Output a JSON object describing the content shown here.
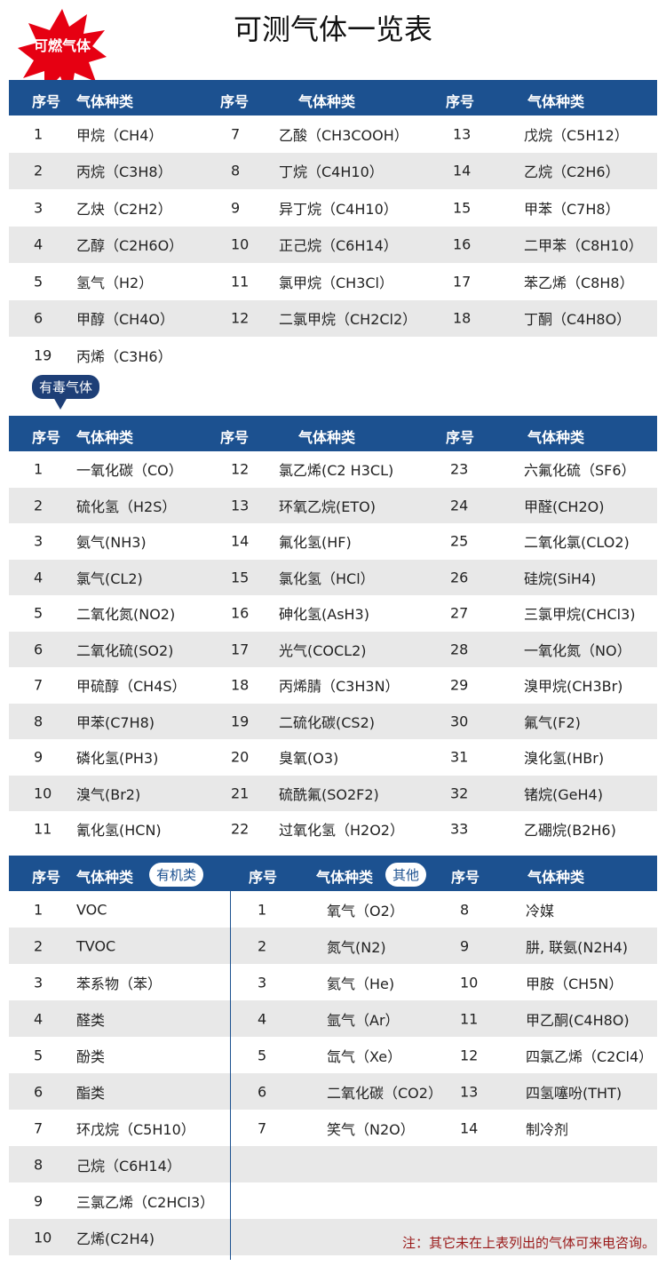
{
  "title": "可测气体一览表",
  "colors": {
    "header": "#1c5190",
    "alt_row": "#e8e8e8",
    "badge_red": "#e60012",
    "note": "#9a1a1a"
  },
  "flammable": {
    "badge": "可燃气体",
    "headers": [
      "序号",
      "气体种类",
      "序号",
      "气体种类",
      "序号",
      "气体种类"
    ],
    "rows": [
      [
        "1",
        "甲烷（CH4）",
        "7",
        "乙酸（CH3COOH）",
        "13",
        "戊烷（C5H12）"
      ],
      [
        "2",
        "丙烷（C3H8）",
        "8",
        "丁烷（C4H10）",
        "14",
        "乙烷（C2H6）"
      ],
      [
        "3",
        "乙炔（C2H2）",
        "9",
        "异丁烷（C4H10）",
        "15",
        "甲苯（C7H8）"
      ],
      [
        "4",
        "乙醇（C2H6O）",
        "10",
        "正己烷（C6H14）",
        "16",
        "二甲苯（C8H10）"
      ],
      [
        "5",
        "氢气（H2）",
        "11",
        "氯甲烷（CH3Cl）",
        "17",
        "苯乙烯（C8H8）"
      ],
      [
        "6",
        "甲醇（CH4O）",
        "12",
        "二氯甲烷（CH2Cl2）",
        "18",
        "丁酮（C4H8O）"
      ],
      [
        "19",
        "丙烯（C3H6）",
        "",
        "",
        "",
        ""
      ]
    ]
  },
  "toxic": {
    "badge": "有毒气体",
    "headers": [
      "序号",
      "气体种类",
      "序号",
      "气体种类",
      "序号",
      "气体种类"
    ],
    "rows": [
      [
        "1",
        "一氧化碳（CO）",
        "12",
        "氯乙烯(C2 H3CL)",
        "23",
        "六氟化硫（SF6）"
      ],
      [
        "2",
        "硫化氢（H2S）",
        "13",
        "环氧乙烷(ETO)",
        "24",
        "甲醛(CH2O)"
      ],
      [
        "3",
        "氨气(NH3)",
        "14",
        "氟化氢(HF)",
        "25",
        "二氧化氯(CLO2)"
      ],
      [
        "4",
        "氯气(CL2)",
        "15",
        "氯化氢（HCl）",
        "26",
        "硅烷(SiH4)"
      ],
      [
        "5",
        "二氧化氮(NO2)",
        "16",
        "砷化氢(AsH3)",
        "27",
        "三氯甲烷(CHCl3)"
      ],
      [
        "6",
        "二氧化硫(SO2)",
        "17",
        "光气(COCL2)",
        "28",
        "一氧化氮（NO）"
      ],
      [
        "7",
        "甲硫醇（CH4S）",
        "18",
        "丙烯腈（C3H3N）",
        "29",
        "溴甲烷(CH3Br)"
      ],
      [
        "8",
        "甲苯(C7H8)",
        "19",
        "二硫化碳(CS2)",
        "30",
        "氟气(F2)"
      ],
      [
        "9",
        "磷化氢(PH3)",
        "20",
        "臭氧(O3)",
        "31",
        "溴化氢(HBr)"
      ],
      [
        "10",
        "溴气(Br2)",
        "21",
        "硫酰氟(SO2F2)",
        "32",
        "锗烷(GeH4)"
      ],
      [
        "11",
        "氰化氢(HCN)",
        "22",
        "过氧化氢（H2O2）",
        "33",
        "乙硼烷(B2H6)"
      ]
    ]
  },
  "bottom": {
    "organic_badge": "有机类",
    "other_badge": "其他",
    "headers": [
      "序号",
      "气体种类",
      "序号",
      "气体种类",
      "序号",
      "气体种类"
    ],
    "rows": [
      [
        "1",
        "VOC",
        "1",
        "氧气（O2）",
        "8",
        "冷媒"
      ],
      [
        "2",
        "TVOC",
        "2",
        "氮气(N2)",
        "9",
        "肼, 联氨(N2H4)"
      ],
      [
        "3",
        "苯系物（苯）",
        "3",
        "氦气（He)",
        "10",
        "甲胺（CH5N）"
      ],
      [
        "4",
        "醛类",
        "4",
        "氩气（Ar）",
        "11",
        "甲乙酮(C4H8O)"
      ],
      [
        "5",
        "酚类",
        "5",
        "氙气（Xe）",
        "12",
        "四氯乙烯（C2Cl4）"
      ],
      [
        "6",
        "酯类",
        "6",
        "二氧化碳（CO2）",
        "13",
        "四氢噻吩(THT)"
      ],
      [
        "7",
        "环戊烷（C5H10）",
        "7",
        "笑气（N2O）",
        "14",
        "制冷剂"
      ],
      [
        "8",
        "己烷（C6H14）",
        "",
        "",
        "",
        ""
      ],
      [
        "9",
        "三氯乙烯（C2HCl3）",
        "",
        "",
        "",
        ""
      ],
      [
        "10",
        "乙烯(C2H4)",
        "",
        "",
        "",
        ""
      ]
    ],
    "note": "注：其它未在上表列出的气体可来电咨询。"
  }
}
